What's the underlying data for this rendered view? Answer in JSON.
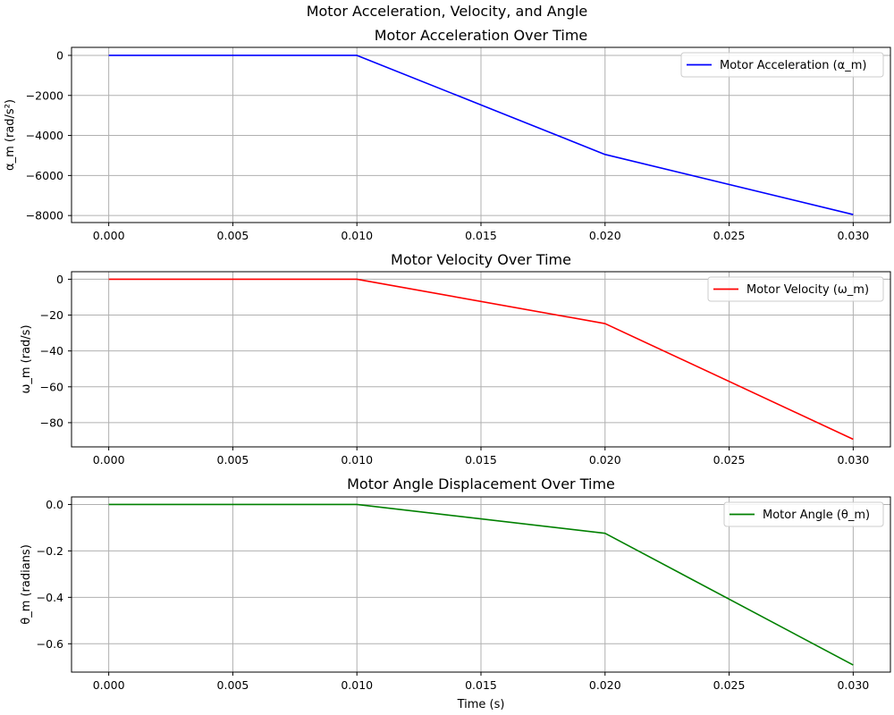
{
  "figure": {
    "suptitle": "Motor Acceleration, Velocity, and Angle"
  },
  "chart_data": [
    {
      "type": "line",
      "title": "Motor Acceleration Over Time",
      "xlabel": "",
      "ylabel": "α_m (rad/s²)",
      "xlim": [
        -0.0015,
        0.0315
      ],
      "ylim": [
        -8350,
        400
      ],
      "xticks": [
        0.0,
        0.005,
        0.01,
        0.015,
        0.02,
        0.025,
        0.03
      ],
      "xtick_labels": [
        "0.000",
        "0.005",
        "0.010",
        "0.015",
        "0.020",
        "0.025",
        "0.030"
      ],
      "yticks": [
        0,
        -2000,
        -4000,
        -6000,
        -8000
      ],
      "ytick_labels": [
        "0",
        "−2000",
        "−4000",
        "−6000",
        "−8000"
      ],
      "grid": true,
      "legend_position": "upper right",
      "series": [
        {
          "name": "Motor Acceleration (α_m)",
          "color": "#0000ff",
          "x": [
            0.0,
            0.01,
            0.02,
            0.03
          ],
          "y": [
            0,
            0,
            -4950,
            -7950
          ]
        }
      ]
    },
    {
      "type": "line",
      "title": "Motor Velocity Over Time",
      "xlabel": "",
      "ylabel": "ω_m (rad/s)",
      "xlim": [
        -0.0015,
        0.0315
      ],
      "ylim": [
        -93.5,
        4.2
      ],
      "xticks": [
        0.0,
        0.005,
        0.01,
        0.015,
        0.02,
        0.025,
        0.03
      ],
      "xtick_labels": [
        "0.000",
        "0.005",
        "0.010",
        "0.015",
        "0.020",
        "0.025",
        "0.030"
      ],
      "yticks": [
        0,
        -20,
        -40,
        -60,
        -80
      ],
      "ytick_labels": [
        "0",
        "−20",
        "−40",
        "−60",
        "−80"
      ],
      "grid": true,
      "legend_position": "upper right",
      "series": [
        {
          "name": "Motor Velocity (ω_m)",
          "color": "#ff0000",
          "x": [
            0.0,
            0.01,
            0.02,
            0.03
          ],
          "y": [
            0,
            0,
            -24.75,
            -89.25
          ]
        }
      ]
    },
    {
      "type": "line",
      "title": "Motor Angle Displacement Over Time",
      "xlabel": "Time (s)",
      "ylabel": "θ_m (radians)",
      "xlim": [
        -0.0015,
        0.0315
      ],
      "ylim": [
        -0.722,
        0.0325
      ],
      "xticks": [
        0.0,
        0.005,
        0.01,
        0.015,
        0.02,
        0.025,
        0.03
      ],
      "xtick_labels": [
        "0.000",
        "0.005",
        "0.010",
        "0.015",
        "0.020",
        "0.025",
        "0.030"
      ],
      "yticks": [
        0.0,
        -0.2,
        -0.4,
        -0.6
      ],
      "ytick_labels": [
        "0.0",
        "−0.2",
        "−0.4",
        "−0.6"
      ],
      "grid": true,
      "legend_position": "upper right",
      "series": [
        {
          "name": "Motor Angle (θ_m)",
          "color": "#008000",
          "x": [
            0.0,
            0.01,
            0.02,
            0.03
          ],
          "y": [
            0,
            0,
            -0.124,
            -0.6915
          ]
        }
      ]
    }
  ]
}
